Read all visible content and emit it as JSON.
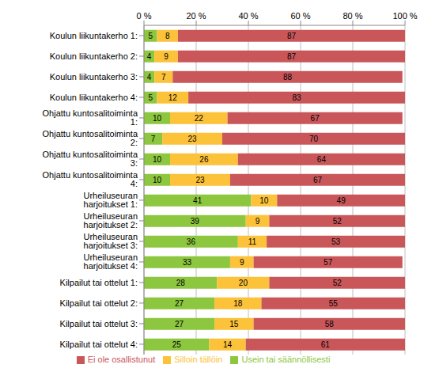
{
  "chart_data": {
    "type": "bar",
    "orientation": "horizontal",
    "stacked": true,
    "data_labels": true,
    "grid": true,
    "legend": "bottom",
    "categories": [
      "Koulun liikuntakerho 1:",
      "Koulun liikuntakerho 2:",
      "Koulun liikuntakerho 3:",
      "Koulun liikuntakerho 4:",
      "Ohjattu kuntosalitoiminta 1:",
      "Ohjattu kuntosalitoiminta 2:",
      "Ohjattu kuntosalitoiminta 3:",
      "Ohjattu kuntosalitoiminta 4:",
      "Urheiluseuran harjoitukset 1:",
      "Urheiluseuran harjoitukset 2:",
      "Urheiluseuran harjoitukset 3:",
      "Urheiluseuran harjoitukset 4:",
      "Kilpailut tai ottelut 1:",
      "Kilpailut tai ottelut 2:",
      "Kilpailut tai ottelut 3:",
      "Kilpailut tai ottelut 4:"
    ],
    "series": [
      {
        "name": "Usein tai säännöllisesti",
        "color": "#8dc63f",
        "values": [
          5,
          4,
          4,
          5,
          10,
          7,
          10,
          10,
          41,
          39,
          36,
          33,
          28,
          27,
          27,
          25
        ]
      },
      {
        "name": "Silloin tällöin",
        "color": "#fbc23a",
        "values": [
          8,
          9,
          7,
          12,
          22,
          23,
          26,
          23,
          10,
          9,
          11,
          9,
          20,
          18,
          15,
          14
        ]
      },
      {
        "name": "Ei ole osallistunut",
        "color": "#c9575a",
        "values": [
          87,
          87,
          88,
          83,
          67,
          70,
          64,
          67,
          49,
          52,
          53,
          57,
          52,
          55,
          58,
          61
        ]
      }
    ],
    "xlim": [
      0,
      100
    ],
    "xticks": [
      {
        "value": 0,
        "label": "0 %"
      },
      {
        "value": 20,
        "label": "20 %"
      },
      {
        "value": 40,
        "label": "40 %"
      },
      {
        "value": 60,
        "label": "60 %"
      },
      {
        "value": 80,
        "label": "80 %"
      },
      {
        "value": 100,
        "label": "100 %"
      }
    ]
  }
}
